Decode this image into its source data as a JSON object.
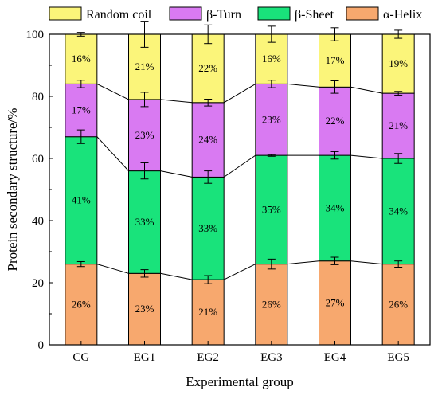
{
  "chart_data": {
    "type": "bar",
    "stacked": true,
    "categories": [
      "CG",
      "EG1",
      "EG2",
      "EG3",
      "EG4",
      "EG5"
    ],
    "xlabel": "Experimental group",
    "ylabel": "Protein secondary structure/%",
    "ylim": [
      0,
      100
    ],
    "yticks": [
      0,
      20,
      40,
      60,
      80,
      100
    ],
    "legend_position": "top",
    "series": [
      {
        "name": "α-Helix",
        "color": "#F7A86E",
        "values": [
          26,
          23,
          21,
          26,
          27,
          26
        ],
        "labels": [
          "26%",
          "23%",
          "21%",
          "26%",
          "27%",
          "26%"
        ],
        "error": [
          0.8,
          1.2,
          1.3,
          1.6,
          1.2,
          1.0
        ]
      },
      {
        "name": "β-Sheet",
        "color": "#19E37B",
        "values": [
          41,
          33,
          33,
          35,
          34,
          34
        ],
        "labels": [
          "41%",
          "33%",
          "33%",
          "35%",
          "34%",
          "34%"
        ],
        "error": [
          2.2,
          2.6,
          2.0,
          0.3,
          1.2,
          1.6
        ]
      },
      {
        "name": "β-Turn",
        "color": "#D97AF2",
        "values": [
          17,
          23,
          24,
          23,
          22,
          21
        ],
        "labels": [
          "17%",
          "23%",
          "24%",
          "23%",
          "22%",
          "21%"
        ],
        "error": [
          1.2,
          2.3,
          1.1,
          1.2,
          2.0,
          0.6
        ]
      },
      {
        "name": "Random coil",
        "color": "#FBF57A",
        "values": [
          16,
          21,
          22,
          16,
          17,
          19
        ],
        "labels": [
          "16%",
          "21%",
          "22%",
          "16%",
          "17%",
          "19%"
        ],
        "error": [
          0.6,
          4.2,
          3.0,
          2.6,
          2.1,
          1.3
        ]
      }
    ],
    "legend_order": [
      "Random coil",
      "β-Turn",
      "β-Sheet",
      "α-Helix"
    ]
  }
}
